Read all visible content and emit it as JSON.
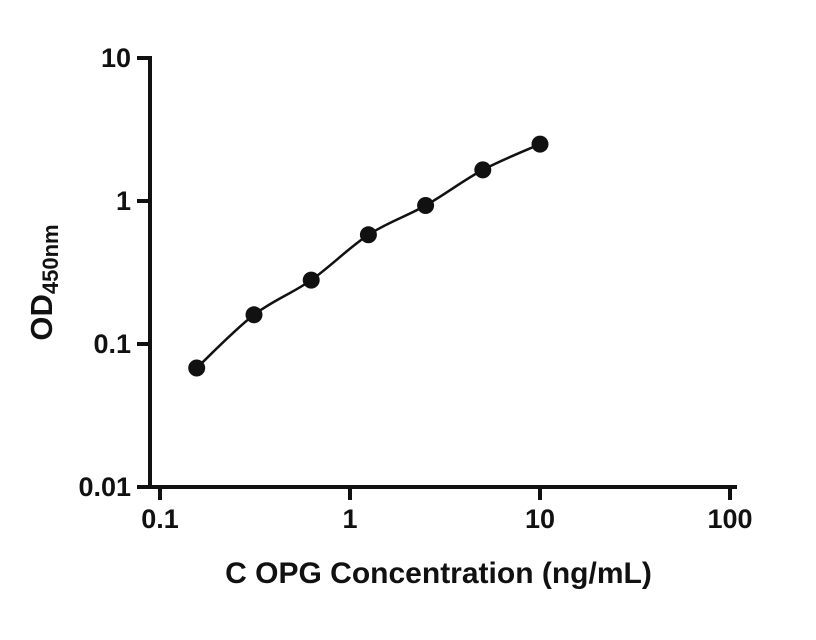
{
  "chart_data": {
    "type": "scatter",
    "subtype": "standard-curve-with-fit-line",
    "x": [
      0.156,
      0.3125,
      0.625,
      1.25,
      2.5,
      5,
      10
    ],
    "y": [
      0.068,
      0.16,
      0.28,
      0.58,
      0.93,
      1.65,
      2.5
    ],
    "x_scale": "log",
    "y_scale": "log",
    "xlim": [
      0.1,
      100
    ],
    "ylim": [
      0.01,
      10
    ],
    "x_ticks": [
      0.1,
      1,
      10,
      100
    ],
    "x_tick_labels": [
      "0.1",
      "1",
      "10",
      "100"
    ],
    "y_ticks": [
      0.01,
      0.1,
      1,
      10
    ],
    "y_tick_labels": [
      "0.01",
      "0.1",
      "1",
      "10"
    ],
    "xlabel": "C OPG Concentration (ng/mL)",
    "ylabel_main": "OD",
    "ylabel_sub": "450nm",
    "grid": "off",
    "legend": "none",
    "marker_color": "#111111",
    "line_color": "#111111",
    "axis_color": "#111111",
    "background_color": "#ffffff"
  }
}
